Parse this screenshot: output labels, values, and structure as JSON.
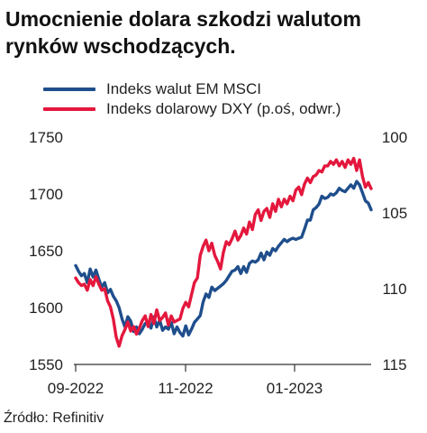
{
  "title": "Umocnienie dolara szkodzi walutom rynków wschodzących.",
  "source": "Źródło: Refinitiv",
  "colors": {
    "em": "#1f4e8c",
    "dxy": "#e4173d"
  },
  "chart_data": {
    "type": "line",
    "title": "Umocnienie dolara szkodzi walutom rynków wschodzących.",
    "legend_position": "top-left",
    "grid": false,
    "x_ticks": [
      "09-2022",
      "11-2022",
      "01-2023"
    ],
    "y_left": {
      "ticks": [
        "1750",
        "1700",
        "1650",
        "1600",
        "1550"
      ],
      "ylim": [
        1550,
        1750
      ]
    },
    "y_right": {
      "ticks": [
        "100",
        "105",
        "110",
        "115"
      ],
      "ylim": [
        100,
        115
      ],
      "inverted": true
    },
    "series": [
      {
        "name": "Indeks walut EM MSCI",
        "axis": "left",
        "color": "#1f4e8c",
        "values": [
          1637,
          1632,
          1628,
          1630,
          1622,
          1634,
          1627,
          1633,
          1625,
          1618,
          1622,
          1613,
          1616,
          1610,
          1606,
          1600,
          1590,
          1583,
          1592,
          1588,
          1579,
          1583,
          1577,
          1581,
          1586,
          1587,
          1582,
          1592,
          1583,
          1589,
          1580,
          1583,
          1581,
          1587,
          1577,
          1583,
          1578,
          1575,
          1584,
          1576,
          1581,
          1587,
          1590,
          1593,
          1605,
          1612,
          1609,
          1618,
          1615,
          1617,
          1619,
          1621,
          1624,
          1628,
          1632,
          1633,
          1636,
          1630,
          1636,
          1631,
          1639,
          1641,
          1640,
          1642,
          1648,
          1642,
          1649,
          1646,
          1652,
          1650,
          1654,
          1657,
          1660,
          1658,
          1660,
          1661,
          1660,
          1661,
          1662,
          1669,
          1677,
          1677,
          1686,
          1688,
          1691,
          1698,
          1696,
          1697,
          1700,
          1699,
          1701,
          1705,
          1703,
          1702,
          1705,
          1708,
          1705,
          1711,
          1708,
          1701,
          1694,
          1692,
          1686
        ]
      },
      {
        "name": "Indeks dolarowy DXY (p.oś, odwr.)",
        "axis": "right",
        "color": "#e4173d",
        "values": [
          109.3,
          109.6,
          109.8,
          109.7,
          110.1,
          109.4,
          109.8,
          109.2,
          109.7,
          110.1,
          110.0,
          110.8,
          111.2,
          112.0,
          113.2,
          113.8,
          113.1,
          112.7,
          112.2,
          112.8,
          112.5,
          113.0,
          112.6,
          112.1,
          111.8,
          112.5,
          111.7,
          112.3,
          111.4,
          112.1,
          111.9,
          111.6,
          112.4,
          111.8,
          112.2,
          112.1,
          112.0,
          111.3,
          110.9,
          111.2,
          110.4,
          109.6,
          109.3,
          107.8,
          107.2,
          106.8,
          107.5,
          107.0,
          107.8,
          108.2,
          108.7,
          107.6,
          106.9,
          107.1,
          106.7,
          106.2,
          106.8,
          106.5,
          106.0,
          106.4,
          105.6,
          106.1,
          105.1,
          104.8,
          105.5,
          104.9,
          104.7,
          105.3,
          104.4,
          104.9,
          104.1,
          104.6,
          104.1,
          104.4,
          103.9,
          104.2,
          103.5,
          103.3,
          103.8,
          103.1,
          102.7,
          103.0,
          102.6,
          102.5,
          102.2,
          102.3,
          101.9,
          101.9,
          101.6,
          101.8,
          101.5,
          101.9,
          101.6,
          102.0,
          101.5,
          101.8,
          101.4,
          102.2,
          101.5,
          102.6,
          103.3,
          103.0,
          103.4
        ]
      }
    ]
  }
}
